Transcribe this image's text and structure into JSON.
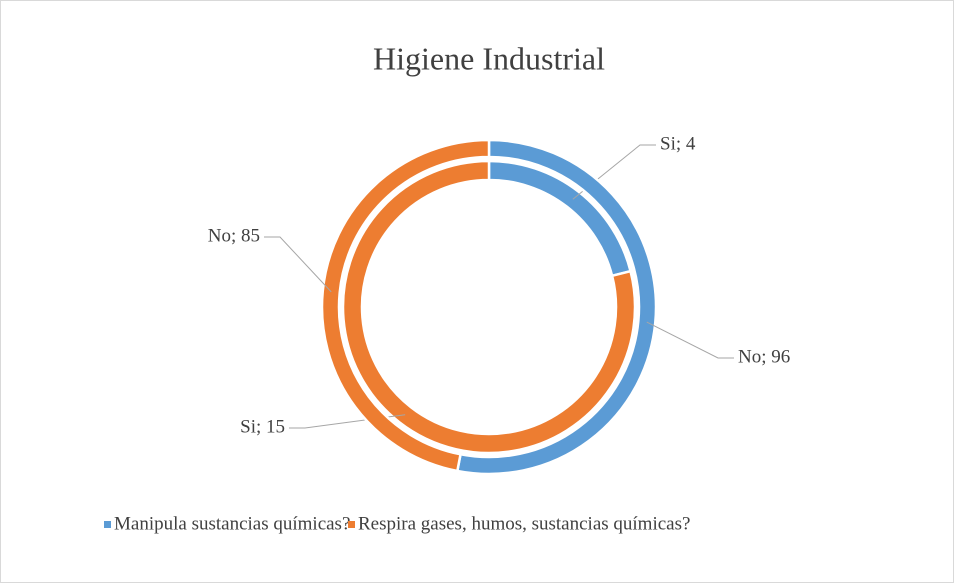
{
  "chart_data": {
    "type": "doughnut",
    "title": "Higiene Industrial",
    "categories": [
      "Manipula sustancias químicas?",
      "Respira gases, humos, sustancias químicas?"
    ],
    "colors": [
      "#5b9bd5",
      "#ed7d31"
    ],
    "series": [
      {
        "values": [
          4,
          15
        ],
        "value_labels": [
          "Si; 4",
          "Si; 15"
        ]
      },
      {
        "values": [
          96,
          85
        ],
        "value_labels": [
          "No; 96",
          "No; 85"
        ]
      }
    ],
    "legend": "bottom"
  }
}
